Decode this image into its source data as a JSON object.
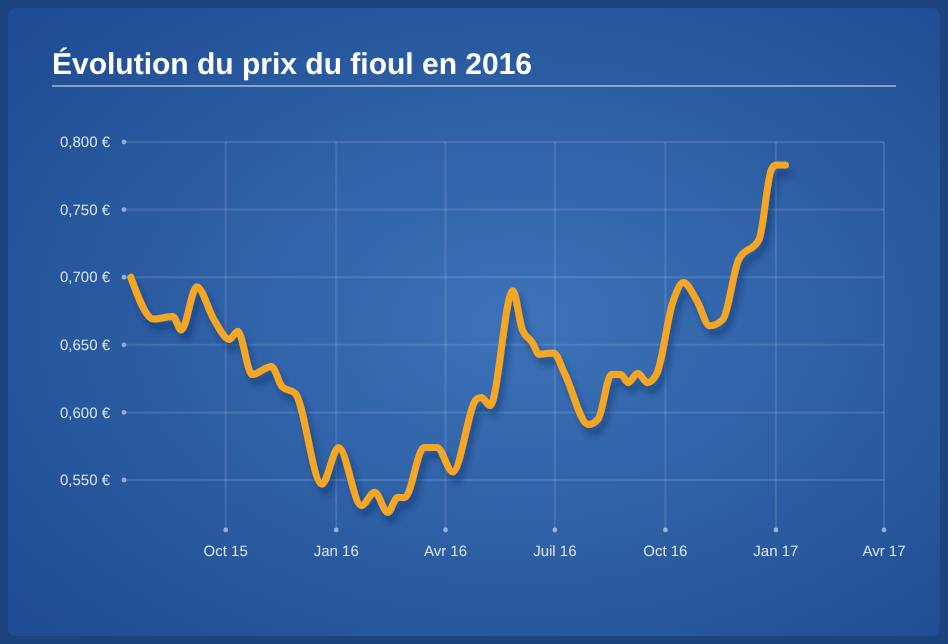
{
  "chart_data": {
    "type": "line",
    "title": "Évolution du prix du fioul en 2016",
    "x": [
      "2015-07-14",
      "2015-08-02",
      "2015-08-18",
      "2015-08-25",
      "2015-09-07",
      "2015-09-21",
      "2015-10-04",
      "2015-10-11",
      "2015-10-23",
      "2015-11-08",
      "2015-11-17",
      "2015-11-28",
      "2015-12-20",
      "2016-01-03",
      "2016-01-22",
      "2016-02-02",
      "2016-02-13",
      "2016-02-21",
      "2016-02-27",
      "2016-03-14",
      "2016-03-25",
      "2016-04-07",
      "2016-04-27",
      "2016-05-01",
      "2016-05-08",
      "2016-05-27",
      "2016-06-04",
      "2016-06-12",
      "2016-06-18",
      "2016-06-30",
      "2016-07-09",
      "2016-07-29",
      "2016-08-06",
      "2016-08-17",
      "2016-08-25",
      "2016-08-31",
      "2016-09-08",
      "2016-09-16",
      "2016-09-24",
      "2016-10-07",
      "2016-10-16",
      "2016-10-27",
      "2016-11-07",
      "2016-11-18",
      "2016-12-01",
      "2016-12-18",
      "2016-12-28",
      "2017-01-01",
      "2017-01-09"
    ],
    "series": [
      {
        "color": "#f5a623",
        "values": [
          0.7,
          0.669,
          0.671,
          0.661,
          0.693,
          0.669,
          0.654,
          0.66,
          0.628,
          0.634,
          0.619,
          0.614,
          0.547,
          0.574,
          0.531,
          0.541,
          0.526,
          0.537,
          0.537,
          0.574,
          0.574,
          0.556,
          0.61,
          0.611,
          0.605,
          0.69,
          0.661,
          0.652,
          0.643,
          0.644,
          0.629,
          0.591,
          0.595,
          0.628,
          0.628,
          0.622,
          0.629,
          0.622,
          0.629,
          0.681,
          0.696,
          0.683,
          0.664,
          0.669,
          0.713,
          0.728,
          0.779,
          0.783,
          0.783
        ]
      }
    ],
    "xlim": [
      "2015-07-10",
      "2017-04-01"
    ],
    "xticks": [
      {
        "value": "2015-10-01",
        "label": "Oct 15"
      },
      {
        "value": "2016-01-01",
        "label": "Jan 16"
      },
      {
        "value": "2016-04-01",
        "label": "Avr 16"
      },
      {
        "value": "2016-07-01",
        "label": "Juil 16"
      },
      {
        "value": "2016-10-01",
        "label": "Oct 16"
      },
      {
        "value": "2017-01-01",
        "label": "Jan 17"
      },
      {
        "value": "2017-04-01",
        "label": "Avr 17"
      }
    ],
    "ylim": [
      0.513,
      0.8
    ],
    "yticks": [
      {
        "value": 0.55,
        "label": "0,550 €"
      },
      {
        "value": 0.6,
        "label": "0,600 €"
      },
      {
        "value": 0.65,
        "label": "0,650 €"
      },
      {
        "value": 0.7,
        "label": "0,700 €"
      },
      {
        "value": 0.75,
        "label": "0,750 €"
      },
      {
        "value": 0.8,
        "label": "0,800 €"
      }
    ],
    "grid": true,
    "marker": "none",
    "line_style": "solid"
  }
}
